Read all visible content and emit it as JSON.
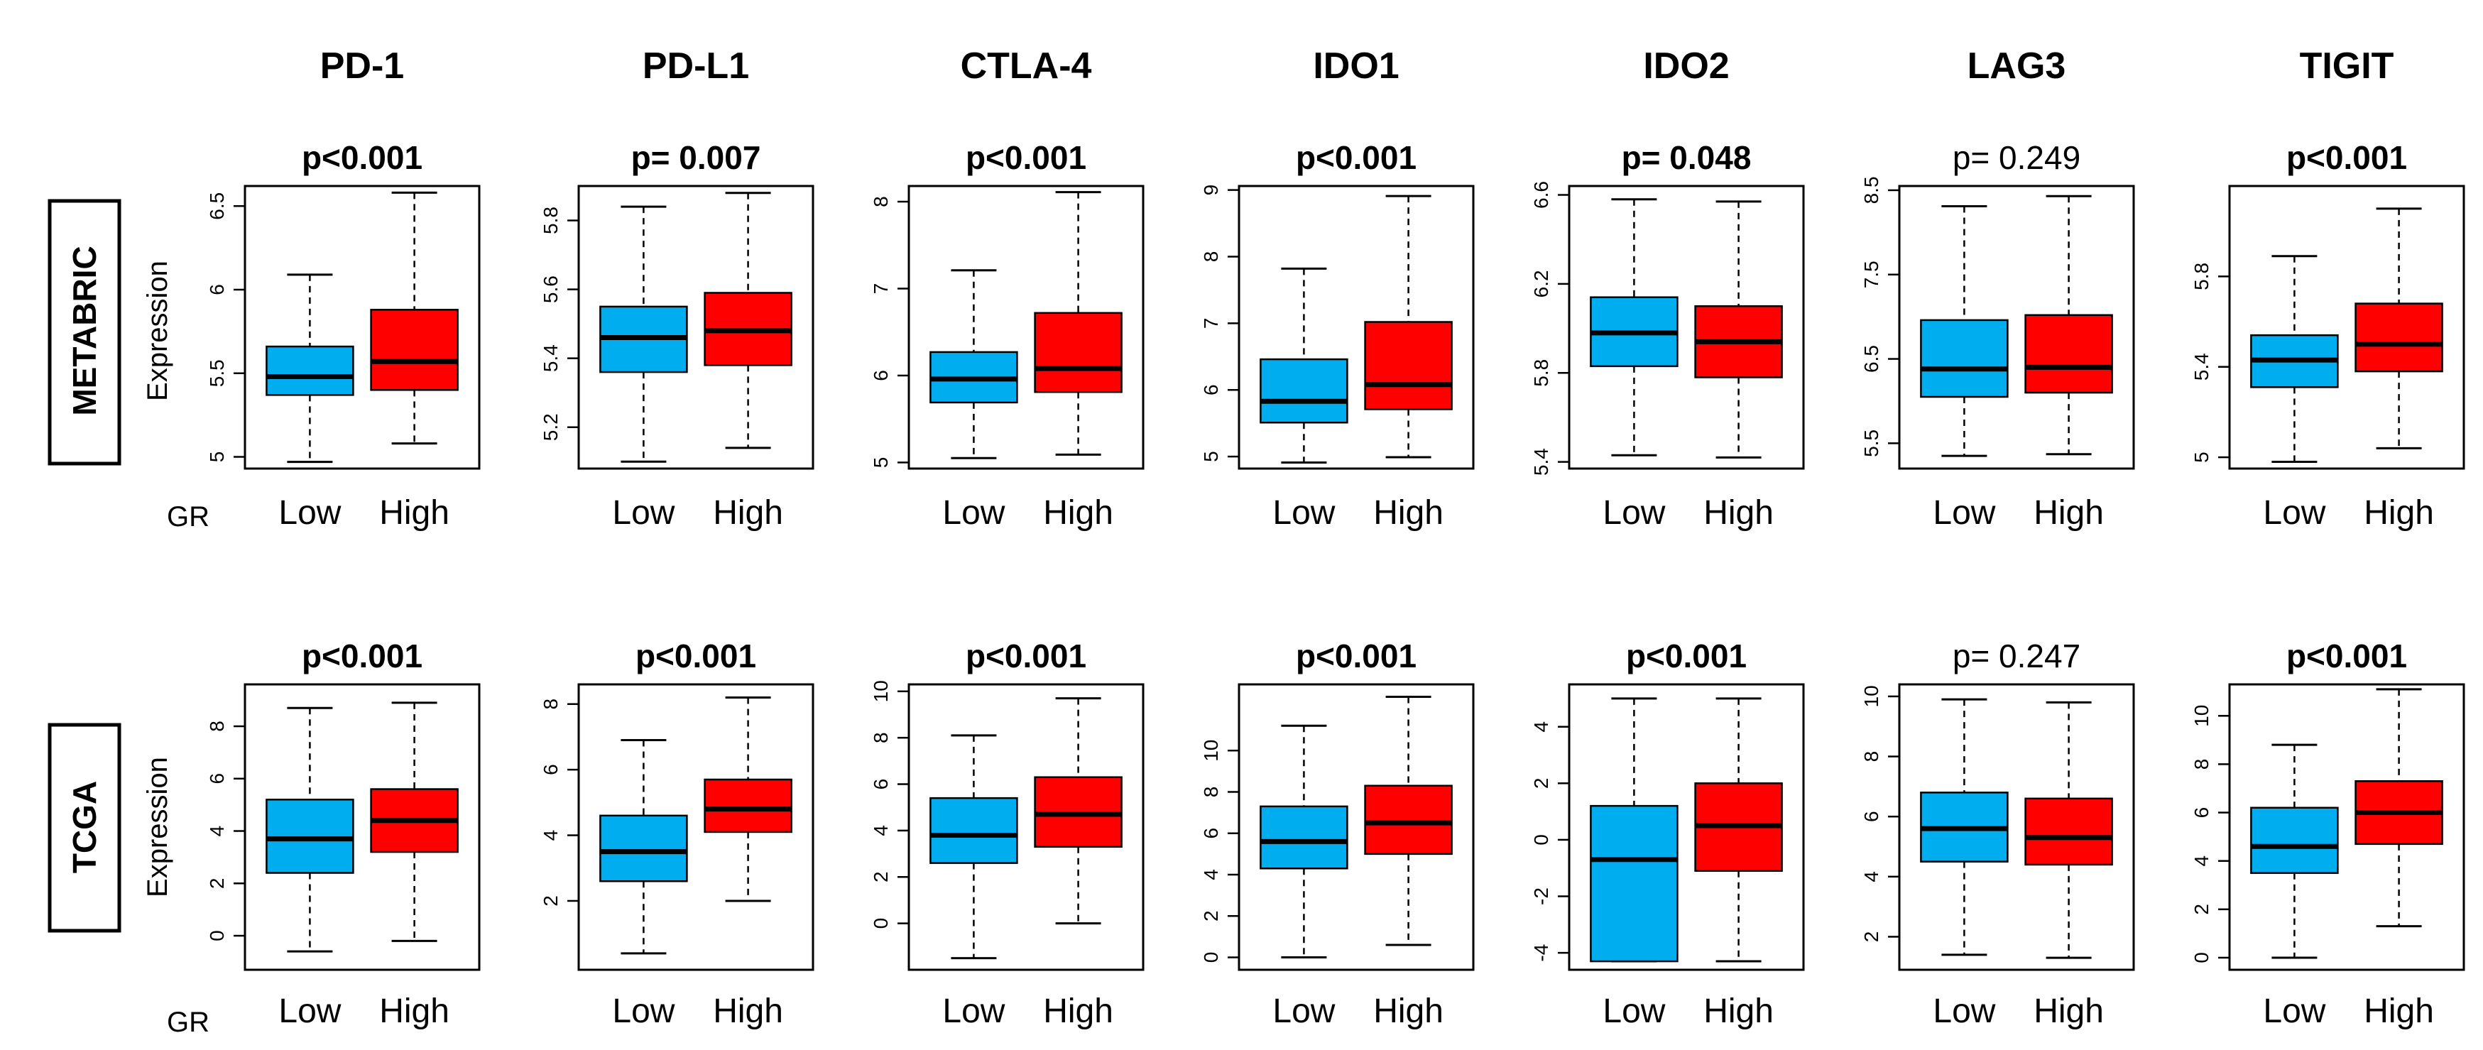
{
  "chart_data": {
    "type": "boxplot",
    "x_caption": "GR",
    "y_label": "Expression",
    "groups": [
      "Low",
      "High"
    ],
    "colors": {
      "Low": "#00AEEF",
      "High": "#FF0000"
    },
    "genes": [
      "PD-1",
      "PD-L1",
      "CTLA-4",
      "IDO1",
      "IDO2",
      "LAG3",
      "TIGIT"
    ],
    "rows": [
      {
        "name": "METABRIC",
        "panels": [
          {
            "gene": "PD-1",
            "p": "p<0.001",
            "significant": true,
            "ylim": [
              4.93,
              6.62
            ],
            "ticks": [
              5.0,
              5.5,
              6.0,
              6.5
            ],
            "boxes": {
              "Low": [
                4.97,
                5.37,
                5.48,
                5.66,
                6.09
              ],
              "High": [
                5.08,
                5.4,
                5.57,
                5.88,
                6.58
              ]
            }
          },
          {
            "gene": "PD-L1",
            "p": "p= 0.007",
            "significant": true,
            "ylim": [
              5.08,
              5.9
            ],
            "ticks": [
              5.2,
              5.4,
              5.6,
              5.8
            ],
            "boxes": {
              "Low": [
                5.1,
                5.36,
                5.46,
                5.55,
                5.84
              ],
              "High": [
                5.14,
                5.38,
                5.48,
                5.59,
                5.88
              ]
            }
          },
          {
            "gene": "CTLA-4",
            "p": "p<0.001",
            "significant": true,
            "ylim": [
              4.93,
              8.18
            ],
            "ticks": [
              5.0,
              6.0,
              7.0,
              8.0
            ],
            "boxes": {
              "Low": [
                5.05,
                5.69,
                5.96,
                6.27,
                7.21
              ],
              "High": [
                5.09,
                5.81,
                6.08,
                6.72,
                8.11
              ]
            }
          },
          {
            "gene": "IDO1",
            "p": "p<0.001",
            "significant": true,
            "ylim": [
              4.82,
              9.06
            ],
            "ticks": [
              5,
              6,
              7,
              8,
              9
            ],
            "boxes": {
              "Low": [
                4.91,
                5.51,
                5.83,
                6.46,
                7.82
              ],
              "High": [
                4.99,
                5.71,
                6.08,
                7.02,
                8.91
              ]
            }
          },
          {
            "gene": "IDO2",
            "p": "p= 0.048",
            "significant": true,
            "ylim": [
              5.37,
              6.64
            ],
            "ticks": [
              5.4,
              5.8,
              6.2,
              6.6
            ],
            "boxes": {
              "Low": [
                5.43,
                5.83,
                5.98,
                6.14,
                6.58
              ],
              "High": [
                5.42,
                5.78,
                5.94,
                6.1,
                6.57
              ]
            }
          },
          {
            "gene": "LAG3",
            "p": "p= 0.249",
            "significant": false,
            "ylim": [
              5.2,
              8.55
            ],
            "ticks": [
              5.5,
              6.5,
              7.5,
              8.5
            ],
            "boxes": {
              "Low": [
                5.35,
                6.05,
                6.38,
                6.96,
                8.31
              ],
              "High": [
                5.37,
                6.1,
                6.4,
                7.02,
                8.43
              ]
            }
          },
          {
            "gene": "TIGIT",
            "p": "p<0.001",
            "significant": true,
            "ylim": [
              4.95,
              6.2
            ],
            "ticks": [
              5.0,
              5.4,
              5.8
            ],
            "boxes": {
              "Low": [
                4.98,
                5.31,
                5.43,
                5.54,
                5.89
              ],
              "High": [
                5.04,
                5.38,
                5.5,
                5.68,
                6.1
              ]
            }
          }
        ]
      },
      {
        "name": "TCGA",
        "panels": [
          {
            "gene": "PD-1",
            "p": "p<0.001",
            "significant": true,
            "ylim": [
              -1.3,
              9.6
            ],
            "ticks": [
              0,
              2,
              4,
              6,
              8
            ],
            "boxes": {
              "Low": [
                -0.6,
                2.4,
                3.7,
                5.2,
                8.7
              ],
              "High": [
                -0.2,
                3.2,
                4.4,
                5.6,
                8.9
              ]
            }
          },
          {
            "gene": "PD-L1",
            "p": "p<0.001",
            "significant": true,
            "ylim": [
              -0.1,
              8.6
            ],
            "ticks": [
              2,
              4,
              6,
              8
            ],
            "boxes": {
              "Low": [
                0.4,
                2.6,
                3.5,
                4.6,
                6.9
              ],
              "High": [
                2.0,
                4.1,
                4.8,
                5.7,
                8.2
              ]
            }
          },
          {
            "gene": "CTLA-4",
            "p": "p<0.001",
            "significant": true,
            "ylim": [
              -2.0,
              10.3
            ],
            "ticks": [
              0,
              2,
              4,
              6,
              8,
              10
            ],
            "boxes": {
              "Low": [
                -1.5,
                2.6,
                3.8,
                5.4,
                8.1
              ],
              "High": [
                0.0,
                3.3,
                4.7,
                6.3,
                9.7
              ]
            }
          },
          {
            "gene": "IDO1",
            "p": "p<0.001",
            "significant": true,
            "ylim": [
              -0.6,
              13.2
            ],
            "ticks": [
              0,
              2,
              4,
              6,
              8,
              10
            ],
            "boxes": {
              "Low": [
                0.0,
                4.3,
                5.6,
                7.3,
                11.2
              ],
              "High": [
                0.6,
                5.0,
                6.5,
                8.3,
                12.6
              ]
            }
          },
          {
            "gene": "IDO2",
            "p": "p<0.001",
            "significant": true,
            "ylim": [
              -4.6,
              5.5
            ],
            "ticks": [
              -4,
              -2,
              0,
              2,
              4
            ],
            "boxes": {
              "Low": [
                -4.3,
                -4.3,
                -0.7,
                1.2,
                5.0
              ],
              "High": [
                -4.3,
                -1.1,
                0.5,
                2.0,
                5.0
              ]
            }
          },
          {
            "gene": "LAG3",
            "p": "p= 0.247",
            "significant": false,
            "ylim": [
              0.9,
              10.4
            ],
            "ticks": [
              2,
              4,
              6,
              8,
              10
            ],
            "boxes": {
              "Low": [
                1.4,
                4.5,
                5.6,
                6.8,
                9.9
              ],
              "High": [
                1.3,
                4.4,
                5.3,
                6.6,
                9.8
              ]
            }
          },
          {
            "gene": "TIGIT",
            "p": "p<0.001",
            "significant": true,
            "ylim": [
              -0.5,
              11.3
            ],
            "ticks": [
              0,
              2,
              4,
              6,
              8,
              10
            ],
            "boxes": {
              "Low": [
                0.0,
                3.5,
                4.6,
                6.2,
                8.8
              ],
              "High": [
                1.3,
                4.7,
                6.0,
                7.3,
                11.1
              ]
            }
          }
        ]
      }
    ]
  }
}
